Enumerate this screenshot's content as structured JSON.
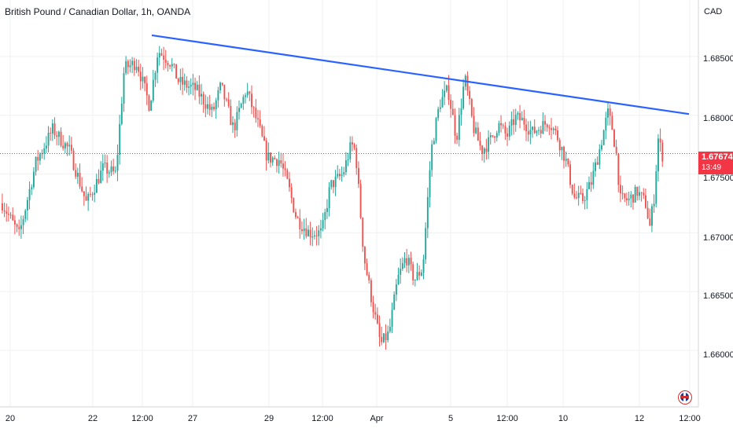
{
  "header": {
    "symbol_title": "British Pound / Canadian Dollar, 1h, OANDA",
    "currency": "CAD"
  },
  "price_axis": {
    "labels": [
      "1.68500",
      "1.68000",
      "1.67500",
      "1.67000",
      "1.66500",
      "1.66000"
    ],
    "last_price": "1.67674",
    "countdown": "13:49"
  },
  "time_axis": {
    "labels": [
      "20",
      "22",
      "12:00",
      "27",
      "29",
      "12:00",
      "Apr",
      "5",
      "12:00",
      "10",
      "12",
      "12:00"
    ]
  },
  "colors": {
    "up": "#26a69a",
    "down": "#ef5350",
    "trendline": "#2962ff",
    "grid": "#eef0f3",
    "last_price_line": "#f23645"
  },
  "chart_data": {
    "type": "candlestick",
    "title": "British Pound / Canadian Dollar, 1h, OANDA",
    "ylabel": "CAD",
    "ylim": [
      1.6552,
      1.6898
    ],
    "grid": true,
    "x_ticks": [
      "20",
      "22",
      "12:00",
      "27",
      "29",
      "12:00",
      "Apr",
      "5",
      "12:00",
      "10",
      "12",
      "12:00"
    ],
    "last_price": 1.67674,
    "close_path": [
      [
        0,
        1.6725
      ],
      [
        4,
        1.6698
      ],
      [
        8,
        1.676
      ],
      [
        12,
        1.6788
      ],
      [
        16,
        1.677
      ],
      [
        20,
        1.6725
      ],
      [
        24,
        1.6755
      ],
      [
        27,
        1.675
      ],
      [
        29,
        1.684
      ],
      [
        32,
        1.6845
      ],
      [
        35,
        1.6808
      ],
      [
        37,
        1.6855
      ],
      [
        40,
        1.6845
      ],
      [
        42,
        1.6828
      ],
      [
        46,
        1.6822
      ],
      [
        50,
        1.6802
      ],
      [
        52,
        1.6825
      ],
      [
        55,
        1.6788
      ],
      [
        58,
        1.6822
      ],
      [
        61,
        1.679
      ],
      [
        63,
        1.6764
      ],
      [
        66,
        1.6762
      ],
      [
        68,
        1.674
      ],
      [
        70,
        1.6712
      ],
      [
        73,
        1.67
      ],
      [
        76,
        1.67
      ],
      [
        78,
        1.674
      ],
      [
        81,
        1.675
      ],
      [
        83,
        1.6775
      ],
      [
        84,
        1.677
      ],
      [
        86,
        1.668
      ],
      [
        88,
        1.664
      ],
      [
        90,
        1.6605
      ],
      [
        92,
        1.6615
      ],
      [
        94,
        1.666
      ],
      [
        96,
        1.668
      ],
      [
        98,
        1.666
      ],
      [
        100,
        1.667
      ],
      [
        102,
        1.677
      ],
      [
        104,
        1.681
      ],
      [
        106,
        1.6822
      ],
      [
        108,
        1.678
      ],
      [
        110,
        1.6832
      ],
      [
        112,
        1.679
      ],
      [
        114,
        1.677
      ],
      [
        116,
        1.6778
      ],
      [
        118,
        1.6792
      ],
      [
        120,
        1.6782
      ],
      [
        122,
        1.6798
      ],
      [
        124,
        1.6795
      ],
      [
        126,
        1.6785
      ],
      [
        128,
        1.679
      ],
      [
        130,
        1.6795
      ],
      [
        132,
        1.6782
      ],
      [
        134,
        1.6762
      ],
      [
        136,
        1.673
      ],
      [
        138,
        1.6728
      ],
      [
        140,
        1.6742
      ],
      [
        142,
        1.677
      ],
      [
        144,
        1.6802
      ],
      [
        145,
        1.679
      ],
      [
        146,
        1.6768
      ],
      [
        147,
        1.6728
      ],
      [
        149,
        1.6728
      ],
      [
        151,
        1.6735
      ],
      [
        153,
        1.6725
      ],
      [
        154,
        1.6705
      ],
      [
        155,
        1.673
      ],
      [
        156,
        1.678
      ],
      [
        157,
        1.6766
      ]
    ],
    "trendline": [
      [
        1.6868,
        "22 12:00"
      ],
      [
        1.6801,
        "12 12:00"
      ]
    ]
  }
}
